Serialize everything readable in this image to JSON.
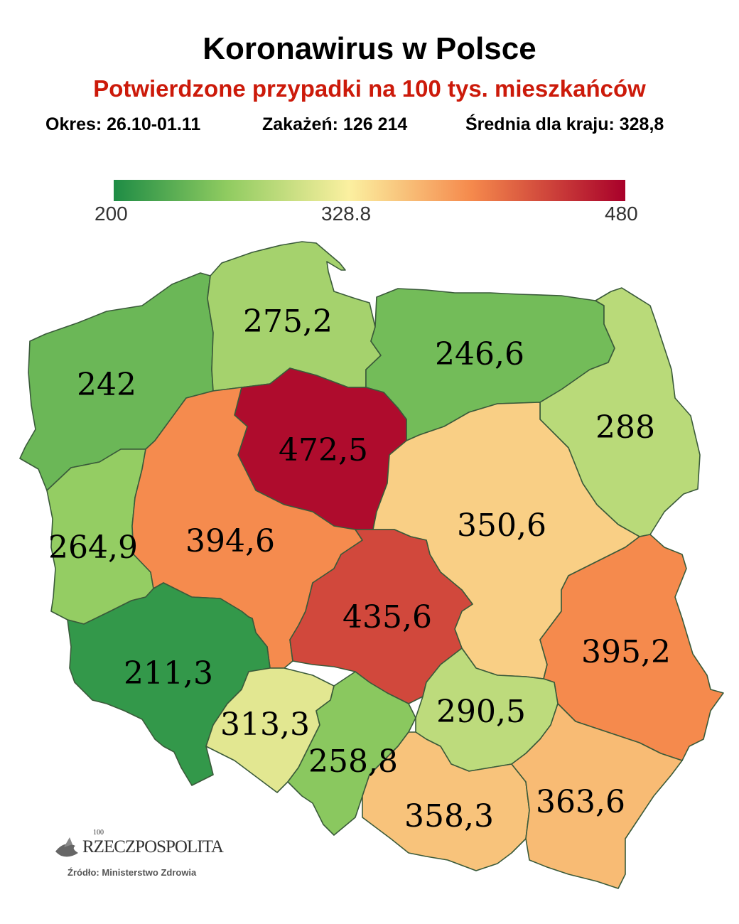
{
  "title": "Koronawirus w Polsce",
  "subtitle": "Potwierdzone przypadki na 100 tys. mieszkańców",
  "stats": {
    "period": "Okres: 26.10-01.11",
    "cases": "Zakażeń: 126 214",
    "average": "Średnia dla kraju: 328,8"
  },
  "legend": {
    "min": "200",
    "mid": "328.8",
    "max": "480",
    "min_value": 200,
    "mid_value": 328.8,
    "max_value": 480,
    "colors": [
      "#1e8c45",
      "#8fcb60",
      "#fbf0a0",
      "#f5894c",
      "#a8002a"
    ]
  },
  "regions": [
    {
      "id": "zachodniopomorskie",
      "label": "242",
      "value": 242
    },
    {
      "id": "pomorskie",
      "label": "275,2",
      "value": 275.2
    },
    {
      "id": "warminsko-mazurskie",
      "label": "246,6",
      "value": 246.6
    },
    {
      "id": "podlaskie",
      "label": "288",
      "value": 288
    },
    {
      "id": "kujawsko-pomorskie",
      "label": "472,5",
      "value": 472.5
    },
    {
      "id": "lubuskie",
      "label": "264,9",
      "value": 264.9
    },
    {
      "id": "wielkopolskie",
      "label": "394,6",
      "value": 394.6
    },
    {
      "id": "mazowieckie",
      "label": "350,6",
      "value": 350.6
    },
    {
      "id": "lodzkie",
      "label": "435,6",
      "value": 435.6
    },
    {
      "id": "lubelskie",
      "label": "395,2",
      "value": 395.2
    },
    {
      "id": "dolnoslaskie",
      "label": "211,3",
      "value": 211.3
    },
    {
      "id": "opolskie",
      "label": "313,3",
      "value": 313.3
    },
    {
      "id": "slaskie",
      "label": "258,8",
      "value": 258.8
    },
    {
      "id": "swietokrzyskie",
      "label": "290,5",
      "value": 290.5
    },
    {
      "id": "malopolskie",
      "label": "358,3",
      "value": 358.3
    },
    {
      "id": "podkarpackie",
      "label": "363,6",
      "value": 363.6
    }
  ],
  "logo": {
    "name": "RZECZPOSPOLITA",
    "years": "100"
  },
  "source": "Źródło: Ministerstwo Zdrowia"
}
